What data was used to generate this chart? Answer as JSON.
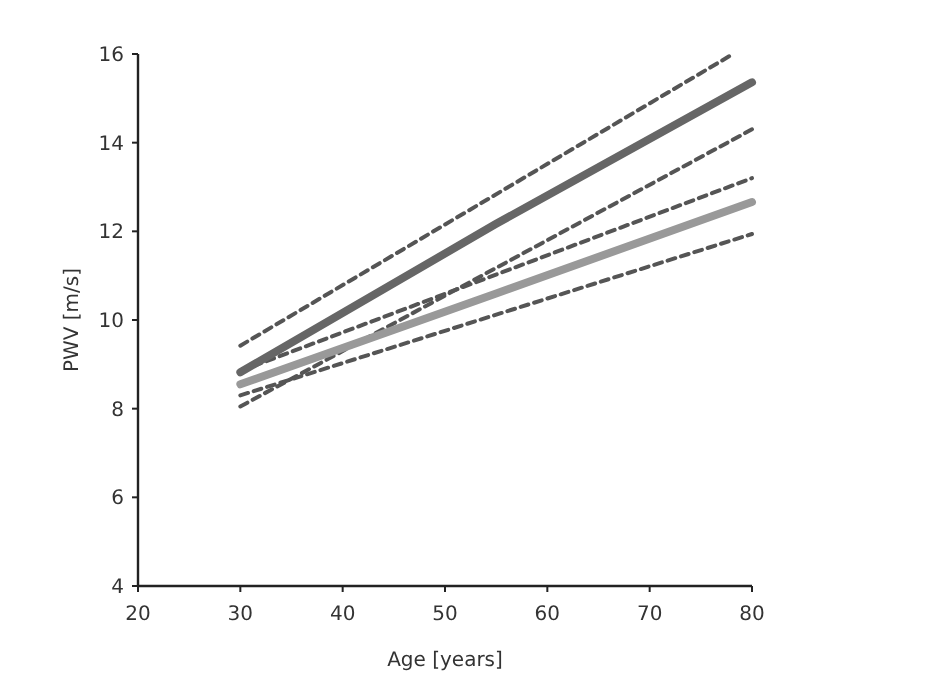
{
  "chart_data": {
    "type": "line",
    "xlabel": "Age [years]",
    "ylabel": "PWV [m/s]",
    "xlim": [
      20,
      80
    ],
    "xticks": [
      20,
      30,
      40,
      50,
      60,
      70,
      80
    ],
    "ylim": [
      4,
      16
    ],
    "yticks": [
      4,
      6,
      8,
      10,
      12,
      14,
      16
    ],
    "grid": false,
    "marker": "none",
    "series": [
      {
        "color": "#555555",
        "line_style": "dashed",
        "x": [
          30,
          78
        ],
        "values": [
          9.42,
          15.98
        ]
      },
      {
        "color": "#555555",
        "line_style": "dashed",
        "x": [
          30,
          80
        ],
        "values": [
          8.05,
          14.3
        ]
      },
      {
        "color": "#555555",
        "line_style": "dashed",
        "x": [
          30,
          80
        ],
        "values": [
          8.85,
          13.2
        ]
      },
      {
        "color": "#555555",
        "line_style": "dashed",
        "x": [
          30,
          80
        ],
        "values": [
          8.3,
          11.94
        ]
      },
      {
        "color": "#999999",
        "line_style": "solid",
        "x": [
          30,
          55,
          80
        ],
        "values": [
          8.55,
          10.6,
          12.66
        ]
      },
      {
        "color": "#666666",
        "line_style": "solid",
        "x": [
          30,
          55,
          80
        ],
        "values": [
          8.82,
          12.17,
          15.36
        ]
      }
    ]
  }
}
